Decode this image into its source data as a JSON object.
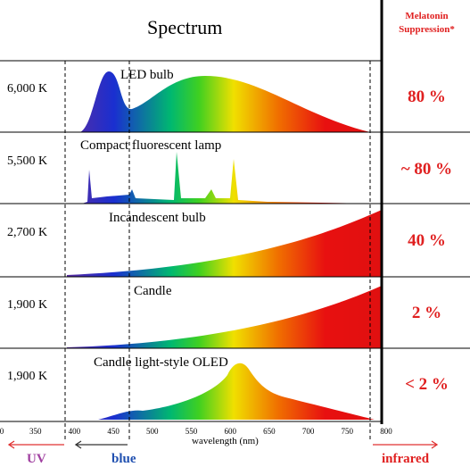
{
  "header": {
    "title": "Spectrum",
    "suppression_title": "Melatonin",
    "suppression_subtitle": "Suppression*"
  },
  "rows": [
    {
      "temperature": "6,000 K",
      "source": "LED bulb",
      "suppression": "80 %"
    },
    {
      "temperature": "5,500 K",
      "source": "Compact fluorescent lamp",
      "suppression": "~ 80 %"
    },
    {
      "temperature": "2,700 K",
      "source": "Incandescent bulb",
      "suppression": "40 %"
    },
    {
      "temperature": "1,900 K",
      "source": "Candle",
      "suppression": "2 %"
    },
    {
      "temperature": "1,900 K",
      "source": "Candle light-style OLED",
      "suppression": "< 2 %"
    }
  ],
  "axis": {
    "ticks": [
      "0",
      "350",
      "400",
      "450",
      "500",
      "550",
      "600",
      "650",
      "700",
      "750",
      "800"
    ],
    "label": "wavelength (nm)"
  },
  "bands": {
    "uv": "UV",
    "blue": "blue",
    "infrared": "infrared"
  }
}
